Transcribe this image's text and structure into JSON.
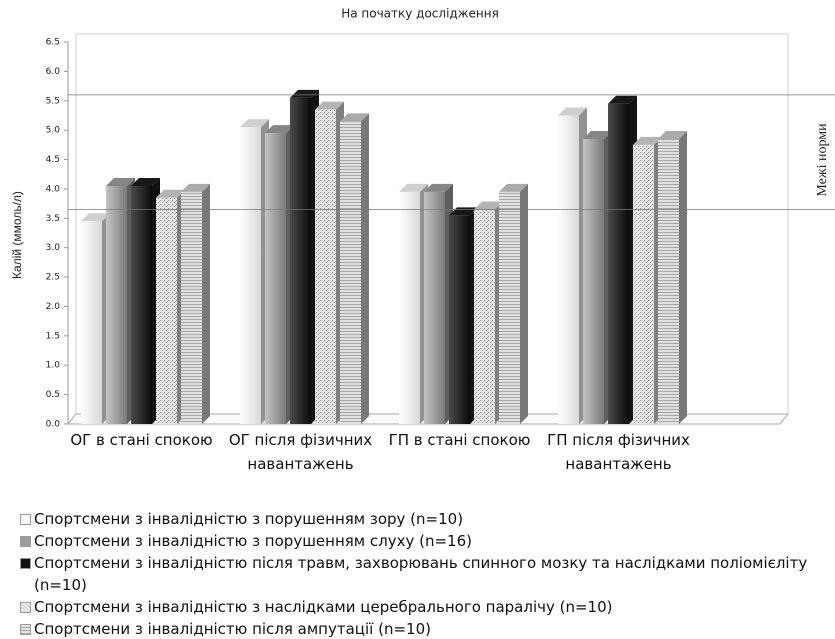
{
  "chart_data": {
    "type": "bar3d",
    "title": "На початку дослідження",
    "y_label": "Калій (ммоль/л)",
    "annotation": "Межі норми",
    "norm_lines": [
      3.65,
      5.6
    ],
    "categories": [
      "ОГ в стані спокою",
      "ОГ після фізичних навантажень",
      "ГП в стані спокою",
      "ГП після фізичних навантажень"
    ],
    "series": [
      {
        "name": "Спортсмени з інвалідністю з порушенням зору (n=10)",
        "color": "#f4f4f4",
        "values": [
          3.45,
          5.05,
          3.95,
          5.25
        ]
      },
      {
        "name": "Спортсмени з інвалідністю з порушенням слуху (n=16)",
        "color": "#9c9c9c",
        "values": [
          4.05,
          4.95,
          3.95,
          4.85
        ]
      },
      {
        "name": "Спортсмени з інвалідністю після травм, захворювань спинного мозку та наслідками поліомієліту (n=10)",
        "color": "#1c1c1c",
        "values": [
          4.05,
          5.55,
          3.55,
          5.45
        ]
      },
      {
        "name": "Спортсмени з інвалідністю з наслідками церебрального паралічу (n=10)",
        "color": "#d4d4d4",
        "values": [
          3.85,
          5.35,
          3.65,
          4.75
        ]
      },
      {
        "name": "Спортсмени з інвалідністю після ампутації (n=10)",
        "color": "#c8c8c8",
        "values": [
          3.95,
          5.15,
          3.95,
          4.85
        ]
      }
    ],
    "ylim": [
      0,
      6.5
    ],
    "yticks": [
      {
        "value": 0,
        "label": "0.0"
      },
      0.5,
      {
        "value": 1,
        "label": "1.0"
      },
      1.5,
      {
        "value": 2,
        "label": "2.0"
      },
      2.5,
      {
        "value": 3,
        "label": "3.0"
      },
      3.5,
      {
        "value": 4,
        "label": "4.0"
      },
      4.5,
      {
        "value": 5,
        "label": "5.0"
      },
      5.5,
      {
        "value": 6,
        "label": "6.0"
      },
      6.5
    ],
    "grid": false
  }
}
